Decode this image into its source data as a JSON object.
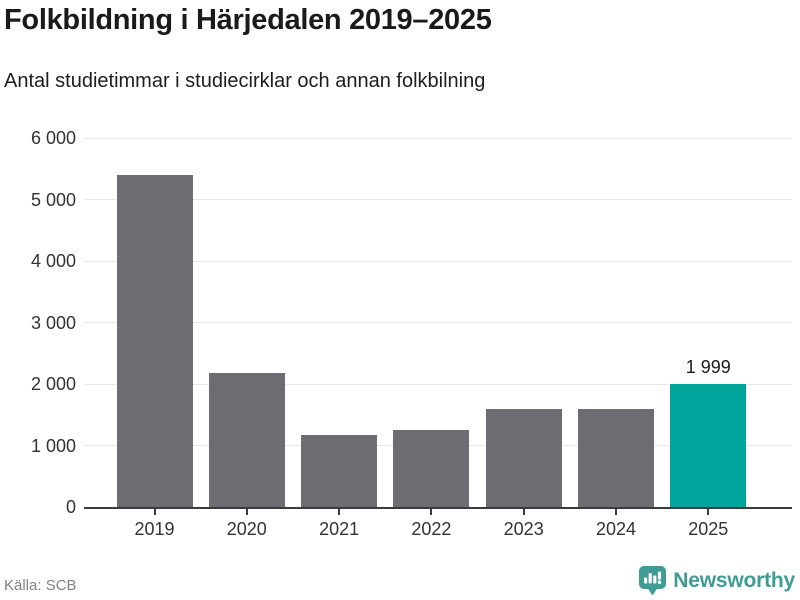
{
  "header": {
    "title": "Folkbildning i Härjedalen 2019–2025",
    "subtitle": "Antal studietimmar i studiecirklar och annan folkbilning"
  },
  "chart_data": {
    "type": "bar",
    "categories": [
      "2019",
      "2020",
      "2021",
      "2022",
      "2023",
      "2024",
      "2025"
    ],
    "values": [
      5400,
      2180,
      1170,
      1250,
      1600,
      1590,
      1999
    ],
    "title": "Folkbildning i Härjedalen 2019–2025",
    "subtitle": "Antal studietimmar i studiecirklar och annan folkbilning",
    "xlabel": "",
    "ylabel": "",
    "ylim": [
      0,
      6000
    ],
    "ytick_interval": 1000,
    "ytick_labels": [
      "0",
      "1 000",
      "2 000",
      "3 000",
      "4 000",
      "5 000",
      "6 000"
    ],
    "grid": true,
    "legend_position": "none",
    "bar_color": "#6c6c72",
    "highlight_color": "#00a49b",
    "highlighted_category": "2025",
    "grid_color": "#e8e8e8",
    "axis_color": "#3b3b3b",
    "annotations": [
      {
        "category": "2025",
        "text": "1 999"
      }
    ]
  },
  "footer": {
    "source": "Källa: SCB",
    "brand": "Newsworthy",
    "brand_color": "#3e9c95",
    "logo_icon": "newsworthy-chart-bubble-icon"
  }
}
